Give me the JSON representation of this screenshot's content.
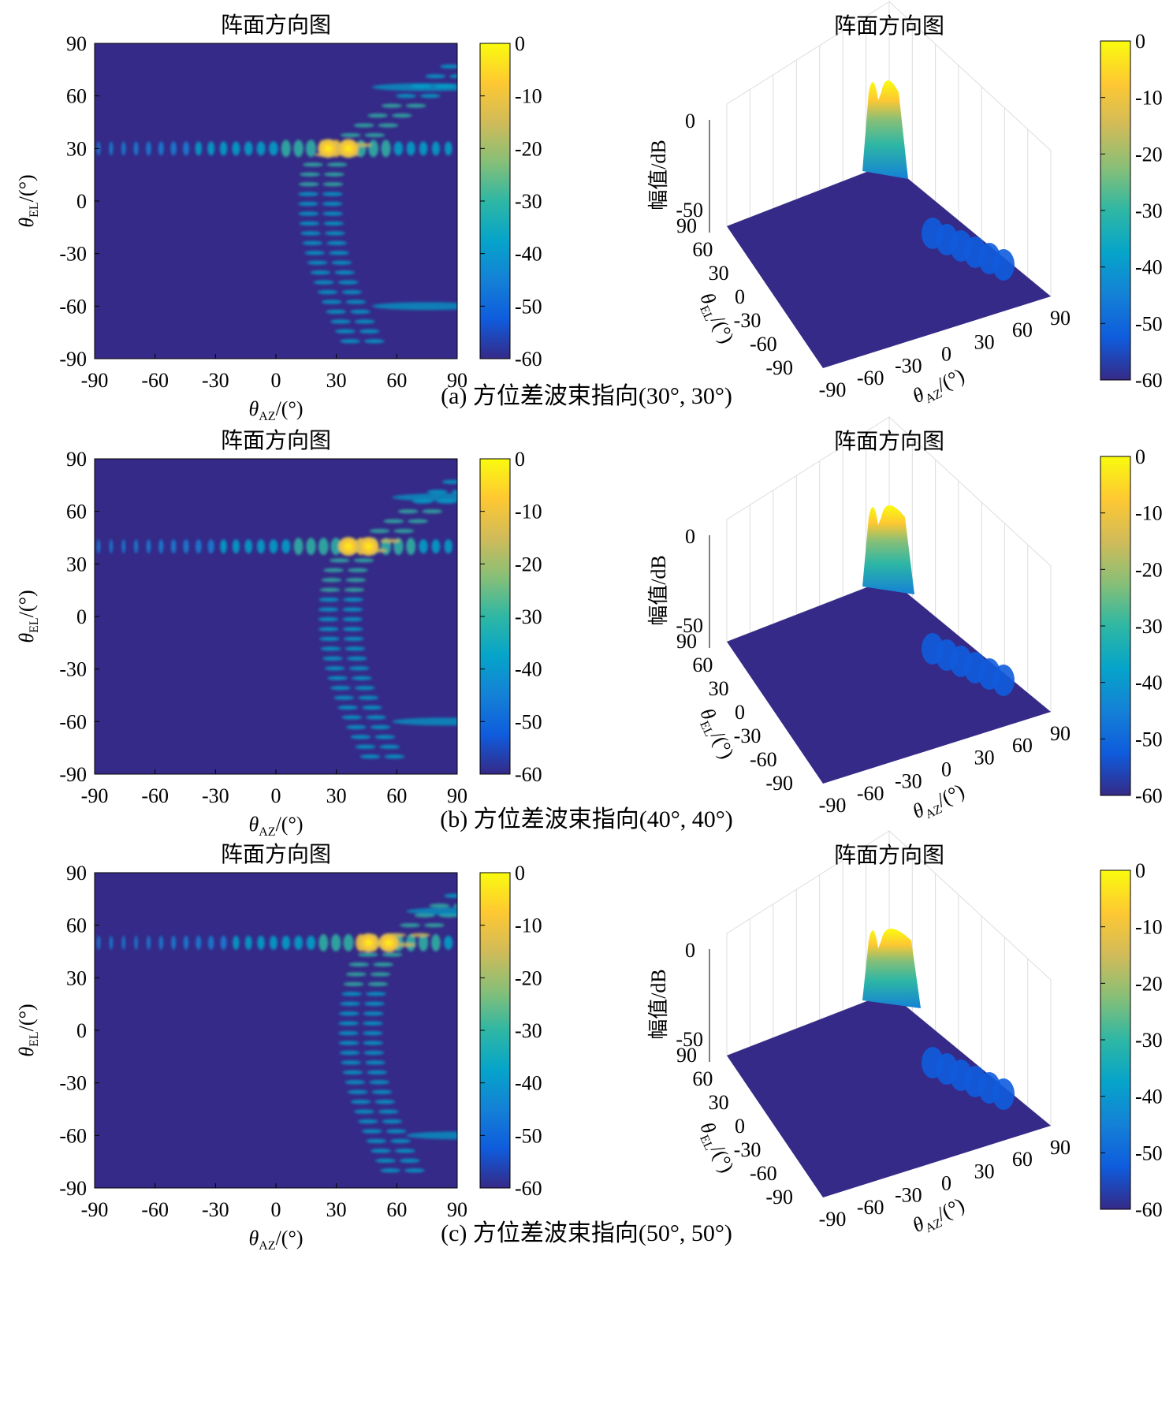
{
  "colors": {
    "colormap": [
      "#352a87",
      "#0f5cdd",
      "#1481d6",
      "#06a4ca",
      "#2eb7a4",
      "#87bf77",
      "#d1bb59",
      "#fec832",
      "#f9fb0e"
    ],
    "background": "#352a87"
  },
  "chart_data": [
    {
      "panel": "a",
      "type": "heatmap",
      "title": "阵面方向图",
      "xlabel": "θAZ/(°)",
      "ylabel": "θEL/(°)",
      "xlim": [
        -90,
        90
      ],
      "ylim": [
        -90,
        90
      ],
      "xticks": [
        "-90",
        "-60",
        "-30",
        "0",
        "30",
        "60",
        "90"
      ],
      "yticks": [
        "90",
        "60",
        "30",
        "0",
        "-30",
        "-60",
        "-90"
      ],
      "colorbar": {
        "range": [
          -60,
          0
        ],
        "ticks": [
          "0",
          "-10",
          "-20",
          "-30",
          "-40",
          "-50",
          "-60"
        ]
      },
      "beam_pointing": [
        30,
        30
      ],
      "caption": "(a) 方位差波束指向(30°, 30°)"
    },
    {
      "panel": "a",
      "type": "surface",
      "title": "阵面方向图",
      "xlabel": "θAZ/(°)",
      "ylabel": "θEL/(°)",
      "zlabel": "幅值/dB",
      "xticks": [
        "-90",
        "-60",
        "-30",
        "0",
        "30",
        "60",
        "90"
      ],
      "yticks": [
        "90",
        "60",
        "30",
        "0",
        "-30",
        "-60",
        "-90"
      ],
      "zticks": [
        "0",
        "-50"
      ],
      "zlim": [
        -60,
        0
      ],
      "colorbar": {
        "range": [
          -60,
          0
        ],
        "ticks": [
          "0",
          "-10",
          "-20",
          "-30",
          "-40",
          "-50",
          "-60"
        ]
      },
      "beam_pointing": [
        30,
        30
      ]
    },
    {
      "panel": "b",
      "type": "heatmap",
      "title": "阵面方向图",
      "xlabel": "θAZ/(°)",
      "ylabel": "θEL/(°)",
      "xlim": [
        -90,
        90
      ],
      "ylim": [
        -90,
        90
      ],
      "xticks": [
        "-90",
        "-60",
        "-30",
        "0",
        "30",
        "60",
        "90"
      ],
      "yticks": [
        "90",
        "60",
        "30",
        "0",
        "-30",
        "-60",
        "-90"
      ],
      "colorbar": {
        "range": [
          -60,
          0
        ],
        "ticks": [
          "0",
          "-10",
          "-20",
          "-30",
          "-40",
          "-50",
          "-60"
        ]
      },
      "beam_pointing": [
        40,
        40
      ],
      "caption": "(b) 方位差波束指向(40°, 40°)"
    },
    {
      "panel": "b",
      "type": "surface",
      "title": "阵面方向图",
      "xlabel": "θAZ/(°)",
      "ylabel": "θEL/(°)",
      "zlabel": "幅值/dB",
      "xticks": [
        "-90",
        "-60",
        "-30",
        "0",
        "30",
        "60",
        "90"
      ],
      "yticks": [
        "90",
        "60",
        "30",
        "0",
        "-30",
        "-60",
        "-90"
      ],
      "zticks": [
        "0",
        "-50"
      ],
      "zlim": [
        -60,
        0
      ],
      "colorbar": {
        "range": [
          -60,
          0
        ],
        "ticks": [
          "0",
          "-10",
          "-20",
          "-30",
          "-40",
          "-50",
          "-60"
        ]
      },
      "beam_pointing": [
        40,
        40
      ]
    },
    {
      "panel": "c",
      "type": "heatmap",
      "title": "阵面方向图",
      "xlabel": "θAZ/(°)",
      "ylabel": "θEL/(°)",
      "xlim": [
        -90,
        90
      ],
      "ylim": [
        -90,
        90
      ],
      "xticks": [
        "-90",
        "-60",
        "-30",
        "0",
        "30",
        "60",
        "90"
      ],
      "yticks": [
        "90",
        "60",
        "30",
        "0",
        "-30",
        "-60",
        "-90"
      ],
      "colorbar": {
        "range": [
          -60,
          0
        ],
        "ticks": [
          "0",
          "-10",
          "-20",
          "-30",
          "-40",
          "-50",
          "-60"
        ]
      },
      "beam_pointing": [
        50,
        50
      ],
      "caption": "(c) 方位差波束指向(50°, 50°)"
    },
    {
      "panel": "c",
      "type": "surface",
      "title": "阵面方向图",
      "xlabel": "θAZ/(°)",
      "ylabel": "θEL/(°)",
      "zlabel": "幅值/dB",
      "xticks": [
        "-90",
        "-60",
        "-30",
        "0",
        "30",
        "60",
        "90"
      ],
      "yticks": [
        "90",
        "60",
        "30",
        "0",
        "-30",
        "-60",
        "-90"
      ],
      "zticks": [
        "0",
        "-50"
      ],
      "zlim": [
        -60,
        0
      ],
      "colorbar": {
        "range": [
          -60,
          0
        ],
        "ticks": [
          "0",
          "-10",
          "-20",
          "-30",
          "-40",
          "-50",
          "-60"
        ]
      },
      "beam_pointing": [
        50,
        50
      ]
    }
  ]
}
